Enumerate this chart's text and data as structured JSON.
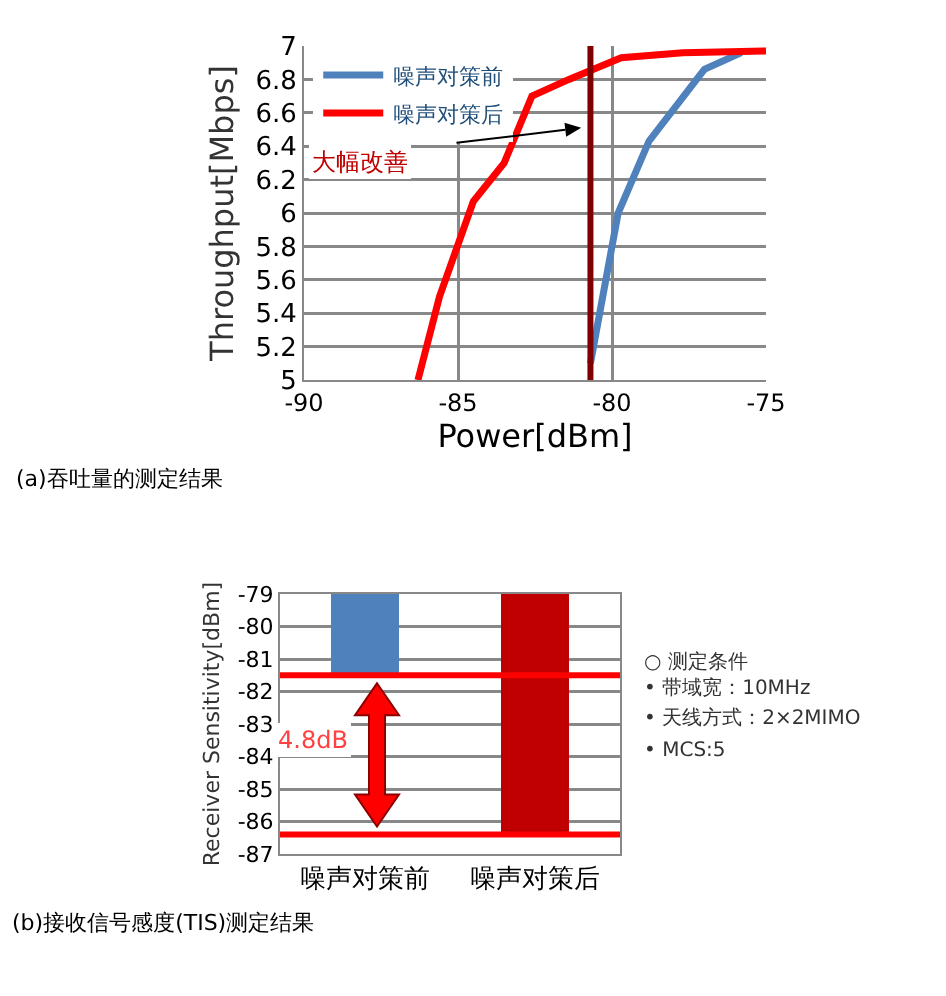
{
  "chart_data": [
    {
      "type": "line",
      "xlabel": "Power[dBm]",
      "ylabel": "Throughput[Mbps]",
      "series": [
        {
          "name": "噪声对策前",
          "color": "#4f81bd",
          "x": [
            -80.7,
            -79.8,
            -78.8,
            -77.0,
            -75.8
          ],
          "values": [
            5.1,
            6.0,
            6.43,
            6.86,
            6.96
          ]
        },
        {
          "name": "噪声对策后",
          "color": "#ff0000",
          "x": [
            -86.3,
            -85.6,
            -84.5,
            -83.5,
            -82.6,
            -81.4,
            -79.7,
            -77.7,
            -75.0
          ],
          "values": [
            5.0,
            5.5,
            6.07,
            6.3,
            6.7,
            6.8,
            6.93,
            6.96,
            6.97
          ]
        }
      ],
      "xlim": [
        -90,
        -75
      ],
      "xticks": [
        -90,
        -85,
        -80,
        -75
      ],
      "ylim": [
        5,
        7
      ],
      "yticks": [
        5,
        {
          "value": 5.2,
          "label": "5.2"
        },
        {
          "value": 5.4,
          "label": "5.4"
        },
        {
          "value": 5.6,
          "label": "5.6"
        },
        {
          "value": 5.8,
          "label": "5.8"
        },
        6,
        {
          "value": 6.2,
          "label": "6.2"
        },
        {
          "value": 6.4,
          "label": "6.4"
        },
        {
          "value": 6.6,
          "label": "6.6"
        },
        {
          "value": 6.8,
          "label": "6.8"
        },
        7
      ],
      "ref_lines": [
        {
          "axis": "x",
          "value": -80.7,
          "color": "#800000"
        }
      ],
      "annotations": [
        "大幅改善",
        "(a)吞吐量的测定结果"
      ],
      "grid": true,
      "legend": "top left",
      "marker": "none",
      "line_style": "solid"
    },
    {
      "type": "bar",
      "ylabel": "Receiver Sensitivity[dBm]",
      "categories": [
        "噪声对策前",
        "噪声对策后"
      ],
      "values": [
        -81.5,
        -86.4
      ],
      "colors": [
        "#4f81bd",
        "#c00000"
      ],
      "ylim": [
        -87,
        -79
      ],
      "yticks": [
        -87,
        -86,
        -85,
        -84,
        -83,
        -82,
        -81,
        -80,
        -79
      ],
      "ref_lines": [
        {
          "axis": "y",
          "value": -81.5,
          "color": "#ff0000"
        },
        {
          "axis": "y",
          "value": -86.4,
          "color": "#ff0000"
        }
      ],
      "annotations": [
        "4.8dB",
        "○ 测定条件",
        "• 带域宽：10MHz",
        "• 天线方式：2×2MIMO",
        "• MCS:5",
        "(b)接收信号感度(TIS)测定结果"
      ],
      "grid": "y",
      "legend": false
    }
  ]
}
